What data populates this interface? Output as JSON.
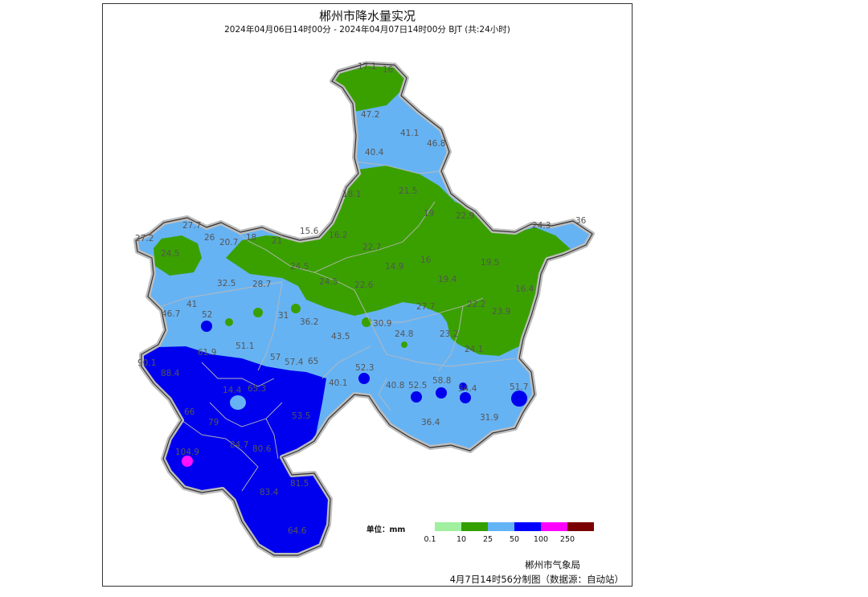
{
  "title": "郴州市降水量实况",
  "subtitle": "2024年04月06日14时00分 - 2024年04月07日14时00分 BJT (共:24小时)",
  "legend": {
    "unit_label": "单位：mm",
    "classes": [
      {
        "color": "#a0f0a0"
      },
      {
        "color": "#33a000"
      },
      {
        "color": "#63b4f5"
      },
      {
        "color": "#0000ff"
      },
      {
        "color": "#ff00ff"
      },
      {
        "color": "#7b0000"
      }
    ],
    "ticks": [
      "0.1",
      "10",
      "25",
      "50",
      "100",
      "250"
    ]
  },
  "colors": {
    "green": "#3aa000",
    "light_blue": "#66b3f4",
    "blue": "#0000ee",
    "magenta": "#ff10ff"
  },
  "stations": [
    {
      "v": "17.1"
    },
    {
      "v": "16"
    },
    {
      "v": "47.2"
    },
    {
      "v": "41.1"
    },
    {
      "v": "46.8"
    },
    {
      "v": "40.4"
    },
    {
      "v": "18.1"
    },
    {
      "v": "21.5"
    },
    {
      "v": "19"
    },
    {
      "v": "22.9"
    },
    {
      "v": "24.3"
    },
    {
      "v": "36"
    },
    {
      "v": "27.7"
    },
    {
      "v": "27.2"
    },
    {
      "v": "26"
    },
    {
      "v": "20.7"
    },
    {
      "v": "18"
    },
    {
      "v": "21"
    },
    {
      "v": "15.6"
    },
    {
      "v": "16.2"
    },
    {
      "v": "22.7"
    },
    {
      "v": "19.5"
    },
    {
      "v": "24.5"
    },
    {
      "v": "24.5"
    },
    {
      "v": "14.9"
    },
    {
      "v": "16"
    },
    {
      "v": "32.5"
    },
    {
      "v": "28.7"
    },
    {
      "v": "24.5"
    },
    {
      "v": "22.6"
    },
    {
      "v": "19.4"
    },
    {
      "v": "16.4"
    },
    {
      "v": "22.2"
    },
    {
      "v": "23.9"
    },
    {
      "v": "46.7"
    },
    {
      "v": "41"
    },
    {
      "v": "52"
    },
    {
      "v": "31"
    },
    {
      "v": "36.2"
    },
    {
      "v": "27.7"
    },
    {
      "v": "30.9"
    },
    {
      "v": "43.5"
    },
    {
      "v": "24.8"
    },
    {
      "v": "23.2"
    },
    {
      "v": "24.1"
    },
    {
      "v": "90.1"
    },
    {
      "v": "61.9"
    },
    {
      "v": "51.1"
    },
    {
      "v": "57"
    },
    {
      "v": "57.4"
    },
    {
      "v": "65"
    },
    {
      "v": "52.3"
    },
    {
      "v": "88.4"
    },
    {
      "v": "14.4"
    },
    {
      "v": "65.3"
    },
    {
      "v": "40.1"
    },
    {
      "v": "40.8"
    },
    {
      "v": "52.5"
    },
    {
      "v": "58.8"
    },
    {
      "v": "54.4"
    },
    {
      "v": "51.7"
    },
    {
      "v": "66"
    },
    {
      "v": "79"
    },
    {
      "v": "53.5"
    },
    {
      "v": "36.4"
    },
    {
      "v": "31.9"
    },
    {
      "v": "104.9"
    },
    {
      "v": "84.7"
    },
    {
      "v": "80.6"
    },
    {
      "v": "83.4"
    },
    {
      "v": "81.5"
    },
    {
      "v": "64.6"
    }
  ],
  "credit": {
    "line1": "郴州市气象局",
    "line2": "4月7日14时56分制图（数据源：自动站）"
  }
}
